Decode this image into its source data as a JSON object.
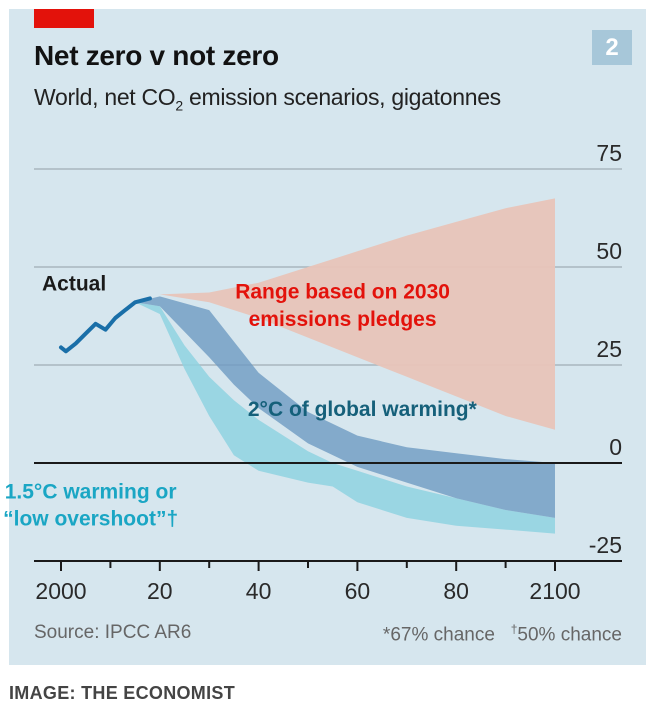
{
  "badge": "2",
  "title": "Net zero v not zero",
  "subtitle_pre": "World, net CO",
  "subtitle_sub": "2",
  "subtitle_post": " emission scenarios, gigatonnes",
  "source": "Source: IPCC AR6",
  "note1": "*67% chance",
  "note2_mark": "†",
  "note2": "50% chance",
  "credit": "IMAGE: THE ECONOMIST",
  "colors": {
    "background": "#d6e6ee",
    "brand_red": "#e3120b",
    "actual": "#1a6fa8",
    "pledges": "#e8c4b8",
    "two_degree": "#6e9bc2",
    "one_five": "#8fd2e0",
    "overlap": "#5eaacb",
    "two_degree_label": "#15607a",
    "one_five_label": "#1aa6c4",
    "pledges_label": "#e3120b"
  },
  "chart_data": {
    "type": "area",
    "title": "Net zero v not zero",
    "subtitle": "World, net CO2 emission scenarios, gigatonnes",
    "xlabel": "",
    "ylabel": "gigatonnes",
    "xlim": [
      1998,
      2115
    ],
    "ylim": [
      -25,
      75
    ],
    "x_ticks": [
      2000,
      2020,
      2040,
      2060,
      2080,
      2100
    ],
    "x_tick_labels": [
      "2000",
      "20",
      "40",
      "60",
      "80",
      "2100"
    ],
    "x_minor_ticks": [
      2010,
      2030,
      2050,
      2070,
      2090
    ],
    "y_ticks": [
      75,
      50,
      25,
      0,
      -25
    ],
    "y_tick_labels": [
      "75",
      "50",
      "25",
      "0",
      "-25"
    ],
    "grid": true,
    "series": [
      {
        "name": "Actual",
        "kind": "line",
        "x": [
          2000,
          2001,
          2003,
          2005,
          2007,
          2009,
          2011,
          2013,
          2015,
          2018
        ],
        "y": [
          29.5,
          28.5,
          30.5,
          33,
          35.5,
          34,
          37,
          39,
          41,
          42
        ]
      },
      {
        "name": "Range based on 2030 emissions pledges",
        "kind": "band",
        "x": [
          2015,
          2020,
          2030,
          2040,
          2050,
          2060,
          2070,
          2080,
          2090,
          2100
        ],
        "upper": [
          41,
          43,
          43.5,
          46,
          50,
          54,
          58,
          61.5,
          65,
          67.5
        ],
        "lower": [
          41,
          43,
          41,
          37,
          32,
          27,
          22,
          17,
          12,
          8.5
        ]
      },
      {
        "name": "2°C of global warming*",
        "kind": "band",
        "x": [
          2015,
          2020,
          2030,
          2035,
          2040,
          2050,
          2060,
          2070,
          2080,
          2090,
          2100
        ],
        "upper": [
          41,
          42.5,
          39,
          31,
          23,
          13,
          7,
          4,
          2.5,
          1,
          0
        ],
        "lower": [
          41,
          40,
          27,
          20,
          14,
          5,
          -1,
          -5,
          -9,
          -12,
          -14
        ]
      },
      {
        "name": "1.5°C warming or \"low overshoot\"†",
        "kind": "band",
        "x": [
          2015,
          2020,
          2025,
          2030,
          2035,
          2040,
          2050,
          2055,
          2060,
          2070,
          2080,
          2090,
          2100
        ],
        "upper": [
          41,
          40,
          30,
          22,
          16,
          11,
          3,
          0,
          -2,
          -6,
          -9,
          -12,
          -14
        ],
        "lower": [
          41,
          38,
          24,
          12,
          2,
          -2,
          -5,
          -6,
          -10,
          -14,
          -16,
          -17,
          -18
        ]
      }
    ],
    "annotations": [
      {
        "text": "Actual",
        "x": 2000,
        "y": 44
      },
      {
        "text": "Range based on 2030",
        "x": 2057,
        "y": 42
      },
      {
        "text": "emissions pledges",
        "x": 2057,
        "y": 35
      },
      {
        "text": "2°C of global warming*",
        "x": 2061,
        "y": 12
      },
      {
        "text": "1.5°C warming or",
        "x": 2006,
        "y": -9
      },
      {
        "text": "“low overshoot”†",
        "x": 2006,
        "y": -16
      }
    ]
  }
}
